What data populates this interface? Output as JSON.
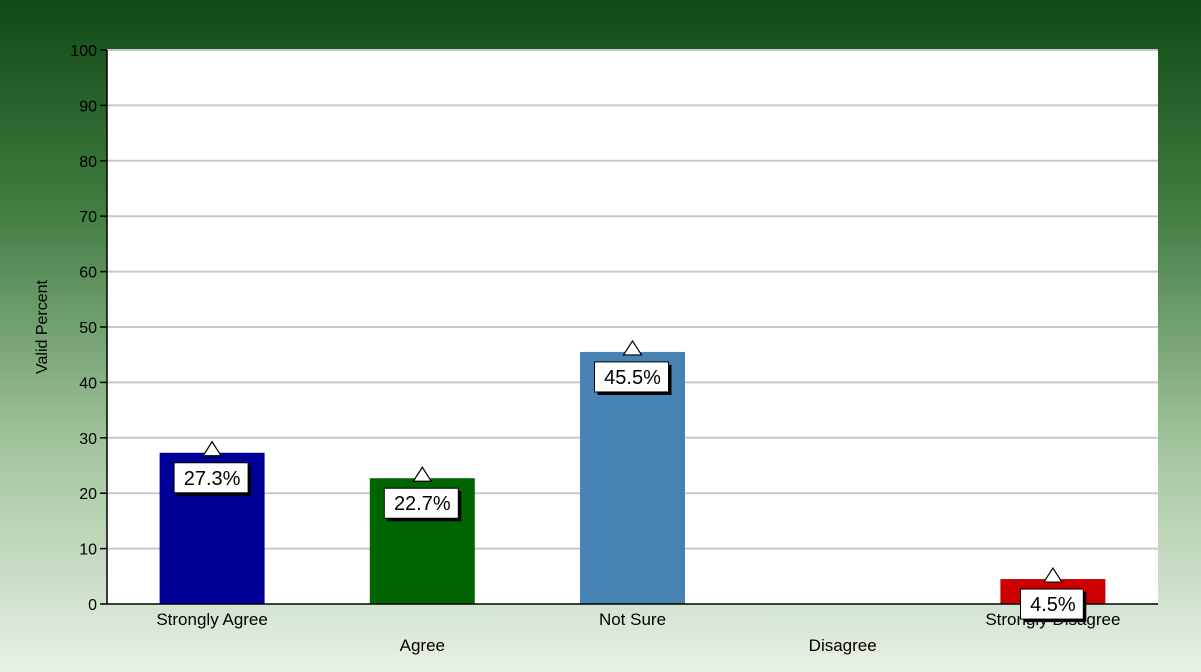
{
  "chart_data": {
    "type": "bar",
    "title": "",
    "xlabel": "",
    "ylabel": "Valid Percent",
    "ylim": [
      0,
      100
    ],
    "yticks": [
      0,
      10,
      20,
      30,
      40,
      50,
      60,
      70,
      80,
      90,
      100
    ],
    "grid": true,
    "categories": [
      "Strongly Agree",
      "Agree",
      "Not Sure",
      "Disagree",
      "Strongly Disagree"
    ],
    "values": [
      27.3,
      22.7,
      45.5,
      0,
      4.5
    ],
    "data_labels": [
      "27.3%",
      "22.7%",
      "45.5%",
      "",
      "4.5%"
    ],
    "colors": [
      "#000099",
      "#006400",
      "#4682b4",
      "#808080",
      "#cc0000"
    ],
    "plot_background": "#ffffff",
    "gridline_color": "#c8c8c8"
  }
}
